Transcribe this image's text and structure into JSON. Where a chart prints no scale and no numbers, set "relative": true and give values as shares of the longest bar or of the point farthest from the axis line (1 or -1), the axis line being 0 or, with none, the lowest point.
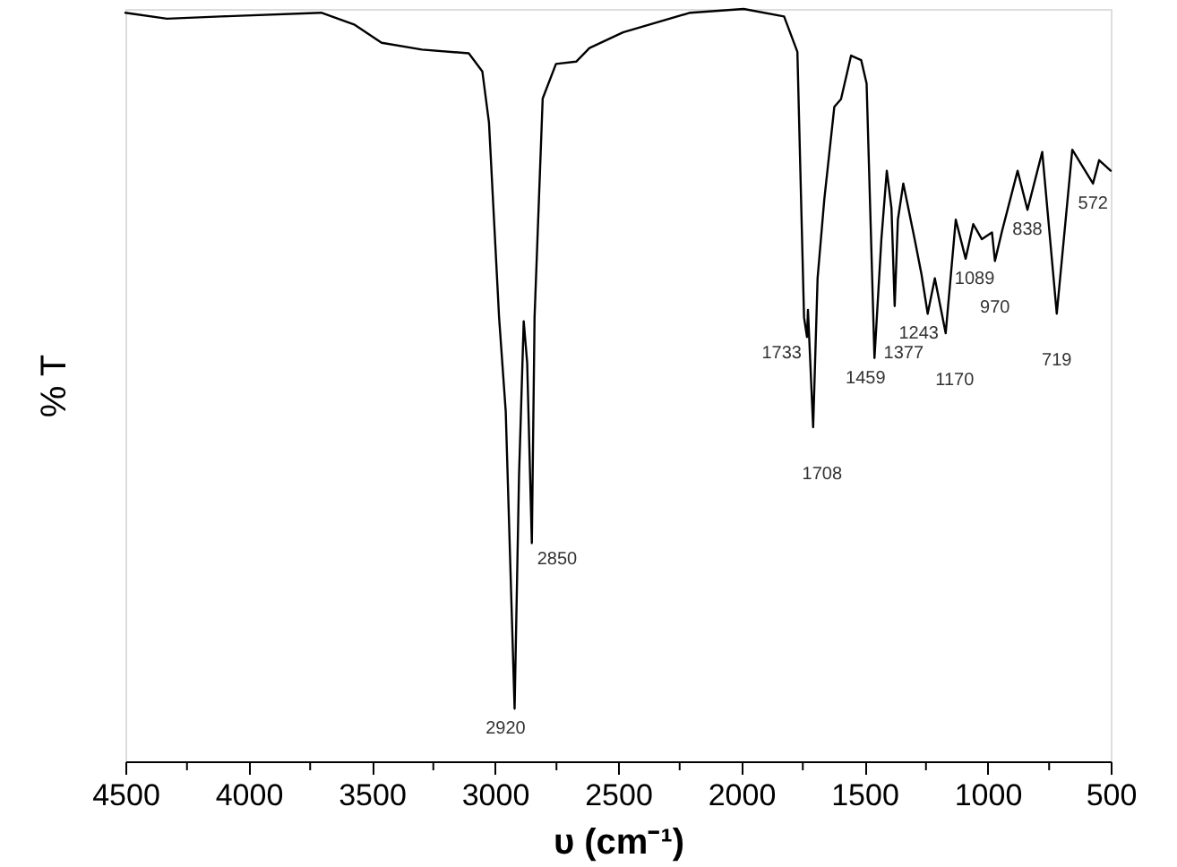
{
  "chart_data": {
    "type": "line",
    "relative": true,
    "xlabel": "υ (cm⁻¹)",
    "ylabel": "% T",
    "xlim": [
      4500,
      500
    ],
    "xticks": [
      4500,
      {
        "value": 4250,
        "label": null
      },
      4000,
      {
        "value": 3750,
        "label": null
      },
      3500,
      {
        "value": 3250,
        "label": null
      },
      3000,
      {
        "value": 2750,
        "label": null
      },
      2500,
      {
        "value": 2250,
        "label": null
      },
      2000,
      {
        "value": 1750,
        "label": null
      },
      1500,
      {
        "value": 1250,
        "label": null
      },
      1000,
      {
        "value": 750,
        "label": null
      },
      500
    ],
    "grid": false,
    "marker": "none",
    "line_style": "solid",
    "series": [
      {
        "color": "#000000",
        "x": [
          4500,
          4331,
          4113,
          3705,
          3569,
          3460,
          3296,
          3106,
          3051,
          3024,
          2983,
          2956,
          2920,
          2902,
          2883,
          2869,
          2850,
          2839,
          2806,
          2752,
          2670,
          2616,
          2480,
          2207,
          1990,
          1826,
          1772,
          1745,
          1733,
          1729,
          1708,
          1690,
          1663,
          1622,
          1595,
          1554,
          1513,
          1491,
          1459,
          1431,
          1409,
          1390,
          1377,
          1364,
          1342,
          1296,
          1268,
          1243,
          1214,
          1170,
          1129,
          1089,
          1058,
          1023,
          982,
          970,
          941,
          878,
          838,
          778,
          719,
          656,
          572,
          547,
          500
        ],
        "values": [
          0.995,
          0.987,
          0.99,
          0.995,
          0.979,
          0.955,
          0.946,
          0.941,
          0.917,
          0.849,
          0.59,
          0.465,
          0.07,
          0.38,
          0.585,
          0.53,
          0.29,
          0.59,
          0.881,
          0.927,
          0.93,
          0.948,
          0.969,
          0.995,
          1.0,
          0.99,
          0.943,
          0.59,
          0.564,
          0.6,
          0.444,
          0.642,
          0.746,
          0.87,
          0.88,
          0.938,
          0.932,
          0.901,
          0.536,
          0.694,
          0.785,
          0.735,
          0.605,
          0.72,
          0.768,
          0.694,
          0.647,
          0.595,
          0.642,
          0.569,
          0.72,
          0.668,
          0.714,
          0.694,
          0.703,
          0.665,
          0.705,
          0.785,
          0.733,
          0.81,
          0.595,
          0.813,
          0.768,
          0.799,
          0.785
        ]
      }
    ],
    "annotations": [
      {
        "text": "2920",
        "x": 2920,
        "y": 0.07
      },
      {
        "text": "2850",
        "x": 2850,
        "y": 0.29
      },
      {
        "text": "1733",
        "x": 1733,
        "y": 0.564
      },
      {
        "text": "1708",
        "x": 1708,
        "y": 0.444
      },
      {
        "text": "1459",
        "x": 1459,
        "y": 0.536
      },
      {
        "text": "1377",
        "x": 1377,
        "y": 0.605
      },
      {
        "text": "1243",
        "x": 1243,
        "y": 0.595
      },
      {
        "text": "1170",
        "x": 1170,
        "y": 0.569
      },
      {
        "text": "1089",
        "x": 1089,
        "y": 0.668
      },
      {
        "text": "970",
        "x": 970,
        "y": 0.665
      },
      {
        "text": "838",
        "x": 838,
        "y": 0.733
      },
      {
        "text": "719",
        "x": 719,
        "y": 0.595
      },
      {
        "text": "572",
        "x": 572,
        "y": 0.768
      }
    ]
  }
}
